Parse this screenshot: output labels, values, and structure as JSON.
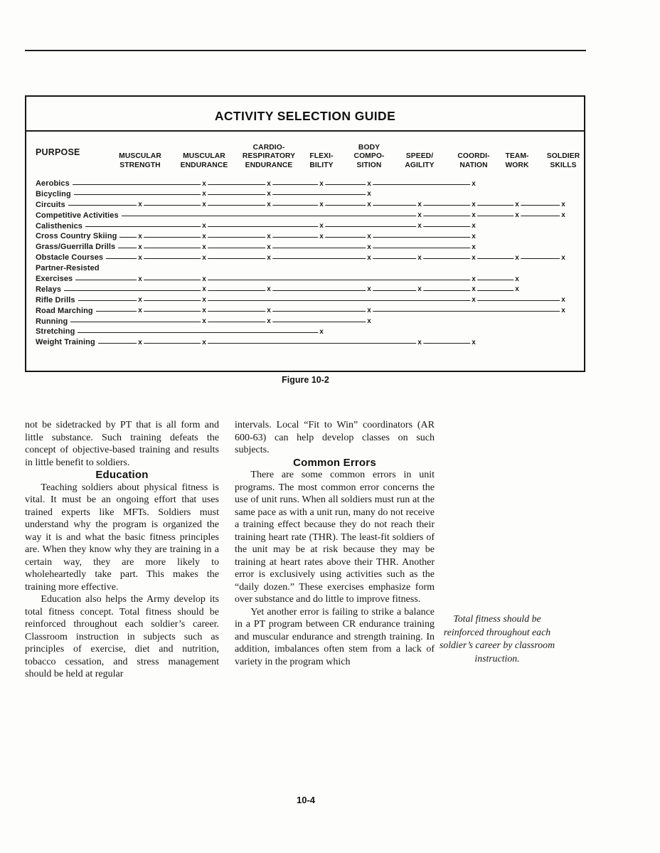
{
  "page": {
    "figure_caption": "Figure 10-2",
    "page_number": "10-4"
  },
  "table": {
    "title": "ACTIVITY SELECTION GUIDE",
    "purpose_header": "PURPOSE",
    "mark_glyph": "x",
    "columns": [
      {
        "label": "MUSCULAR\nSTRENGTH"
      },
      {
        "label": "MUSCULAR\nENDURANCE"
      },
      {
        "label": "CARDIO-\nRESPIRATORY\nENDURANCE"
      },
      {
        "label": "FLEXI-\nBILITY"
      },
      {
        "label": "BODY\nCOMPO-\nSITION"
      },
      {
        "label": "SPEED/\nAGILITY"
      },
      {
        "label": "COORDI-\nNATION"
      },
      {
        "label": "TEAM-\nWORK"
      },
      {
        "label": "SOLDIER\nSKILLS"
      }
    ],
    "rows": [
      {
        "label": "Aerobics",
        "marks": [
          1,
          2,
          3,
          4,
          6
        ]
      },
      {
        "label": "Bicycling",
        "marks": [
          1,
          2,
          4
        ]
      },
      {
        "label": "Circuits",
        "marks": [
          0,
          1,
          2,
          3,
          4,
          5,
          6,
          7,
          8
        ]
      },
      {
        "label": "Competitive Activities",
        "marks": [
          5,
          6,
          7,
          8
        ]
      },
      {
        "label": "Calisthenics",
        "marks": [
          1,
          3,
          5,
          6
        ]
      },
      {
        "label": "Cross Country Skiing",
        "marks": [
          0,
          1,
          2,
          3,
          4,
          6
        ]
      },
      {
        "label": "Grass/Guerrilla Drills",
        "marks": [
          0,
          1,
          2,
          4,
          6
        ]
      },
      {
        "label": "Obstacle Courses",
        "marks": [
          0,
          1,
          2,
          4,
          5,
          6,
          7,
          8
        ]
      },
      {
        "label": "Partner-Resisted",
        "marks": []
      },
      {
        "label": "Exercises",
        "marks": [
          0,
          1,
          6,
          7
        ]
      },
      {
        "label": "Relays",
        "marks": [
          1,
          2,
          4,
          5,
          6,
          7
        ]
      },
      {
        "label": "Rifle Drills",
        "marks": [
          0,
          1,
          6,
          8
        ]
      },
      {
        "label": "Road Marching",
        "marks": [
          0,
          1,
          2,
          4,
          8
        ]
      },
      {
        "label": "Running",
        "marks": [
          1,
          2,
          4
        ]
      },
      {
        "label": "Stretching",
        "marks": [
          3
        ]
      },
      {
        "label": "Weight Training",
        "marks": [
          0,
          1,
          5,
          6
        ]
      }
    ]
  },
  "left_column": {
    "para0": "not be sidetracked by PT that is all form and little substance. Such training defeats the concept of objective-based training and results in little benefit to soldiers.",
    "heading": "Education",
    "para1": "Teaching soldiers about physical fitness is vital. It must be an ongoing effort that uses trained experts like MFTs. Soldiers must understand why the program is organized the way it is and what the basic fitness principles are. When they know why they are training in a certain way, they are more likely to wholeheartedly take part. This makes the training more effective.",
    "para2": "Education also helps the Army develop its total fitness concept. Total fitness should be reinforced throughout each soldier’s career. Classroom instruction in subjects such as principles of exercise, diet and nutrition, tobacco cessation, and stress management should be held at regular"
  },
  "right_column": {
    "para0": "intervals. Local “Fit to Win” coordinators (AR 600-63) can help develop classes on such subjects.",
    "heading": "Common Errors",
    "para1": "There are some common errors in unit programs.  The most common error concerns the use of unit runs. When all soldiers must run at the same pace as with a unit run, many do not receive a training effect because they do not reach their training heart rate (THR). The least-fit soldiers of the unit may be at risk because they may be training at heart rates above their THR.  Another error is exclusively using activities such as the “daily dozen.” These exercises emphasize form over substance and do little to improve fitness.",
    "para2": "Yet another error is failing to strike a balance in a PT program between CR endurance training and muscular endurance and strength training. In addition, imbalances often stem from a lack of variety in the program which"
  },
  "margin_note": "Total fitness should be reinforced throughout each soldier’s career by classroom instruction."
}
